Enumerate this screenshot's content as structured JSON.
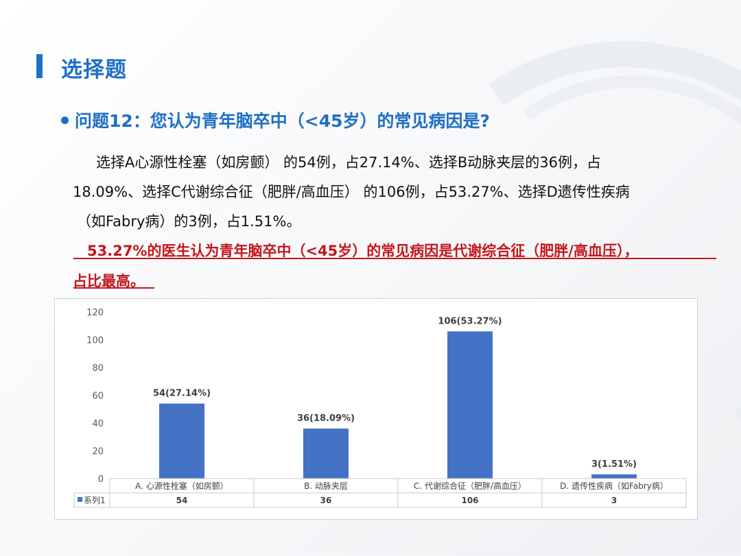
{
  "header": {
    "title": "选择题"
  },
  "question": {
    "text": "问题12：您认为青年脑卒中（<45岁）的常见病因是?"
  },
  "description": {
    "lines": [
      "选择A心源性栓塞（如房颤） 的54例，占27.14%、选择B动脉夹层的36例，占",
      "18.09%、选择C代谢综合征（肥胖/高血压） 的106例，占53.27%、选择D遗传性疾病",
      "（如Fabry病）的3例，占1.51%。"
    ]
  },
  "conclusion": {
    "lines": [
      "53.27%的医生认为青年脑卒中（<45岁）的常见病因是代谢综合征（肥胖/高血压），",
      "占比最高。"
    ]
  },
  "colors": {
    "accent": "#1f6fc4",
    "conclusion": "#c4161c",
    "bar": "#4472c4"
  },
  "chart_data": {
    "type": "bar",
    "categories": [
      "A. 心源性栓塞（如房颤）",
      "B. 动脉夹层",
      "C. 代谢综合征（肥胖/高血压）",
      "D. 遗传性疾病（如Fabry病）"
    ],
    "series": [
      {
        "name": "系列1",
        "values": [
          54,
          36,
          106,
          3
        ]
      }
    ],
    "data_labels": [
      "54(27.14%)",
      "36(18.09%)",
      "106(53.27%)",
      "3(1.51%)"
    ],
    "yticks": [
      0,
      20,
      40,
      60,
      80,
      100,
      120
    ],
    "ylim": [
      0,
      120
    ],
    "xlabel": "",
    "ylabel": "",
    "data_table": true,
    "legend": "data-table"
  }
}
